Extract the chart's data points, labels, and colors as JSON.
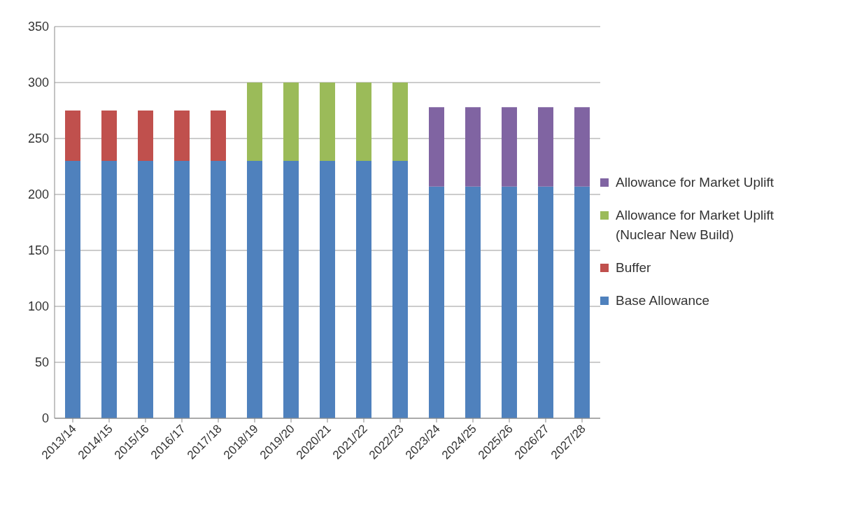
{
  "chart_data": {
    "type": "bar",
    "stacked": true,
    "categories": [
      "2013/14",
      "2014/15",
      "2015/16",
      "2016/17",
      "2017/18",
      "2018/19",
      "2019/20",
      "2020/21",
      "2021/22",
      "2022/23",
      "2023/24",
      "2024/25",
      "2025/26",
      "2026/27",
      "2027/28"
    ],
    "series": [
      {
        "name": "Base Allowance",
        "color": "#4f81bd",
        "values": [
          230,
          230,
          230,
          230,
          230,
          230,
          230,
          230,
          230,
          230,
          207,
          207,
          207,
          207,
          207
        ]
      },
      {
        "name": "Buffer",
        "color": "#c0504d",
        "values": [
          45,
          45,
          45,
          45,
          45,
          null,
          null,
          null,
          null,
          null,
          null,
          null,
          null,
          null,
          null
        ]
      },
      {
        "name": "Allowance for Market Uplift (Nuclear New Build)",
        "color": "#9bbb59",
        "values": [
          null,
          null,
          null,
          null,
          null,
          70,
          70,
          70,
          70,
          70,
          null,
          null,
          null,
          null,
          null
        ]
      },
      {
        "name": "Allowance for Market Uplift",
        "color": "#8064a2",
        "values": [
          null,
          null,
          null,
          null,
          null,
          null,
          null,
          null,
          null,
          null,
          71,
          71,
          71,
          71,
          71
        ]
      }
    ],
    "ylim": [
      0,
      350
    ],
    "yticks": [
      0,
      50,
      100,
      150,
      200,
      250,
      300,
      350
    ],
    "grid": "y",
    "legend": "right"
  }
}
